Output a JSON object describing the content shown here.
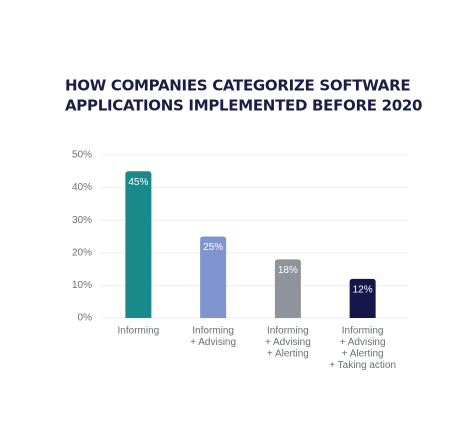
{
  "chart_data": {
    "type": "bar",
    "title": [
      "HOW COMPANIES CATEGORIZE SOFTWARE",
      "APPLICATIONS IMPLEMENTED BEFORE 2020"
    ],
    "categories": [
      [
        "Informing"
      ],
      [
        "Informing",
        "+ Advising"
      ],
      [
        "Informing",
        "+ Advising",
        "+ Alerting"
      ],
      [
        "Informing",
        "+ Advising",
        "+ Alerting",
        "+ Taking action"
      ]
    ],
    "values": [
      45,
      25,
      18,
      12
    ],
    "value_labels": [
      "45%",
      "25%",
      "18%",
      "12%"
    ],
    "colors": [
      "#178a89",
      "#7f95cf",
      "#8e939c",
      "#15174b"
    ],
    "ylim": [
      0,
      50
    ],
    "yticks": [
      {
        "value": 0,
        "label": "0%"
      },
      {
        "value": 10,
        "label": "10%"
      },
      {
        "value": 20,
        "label": "20%"
      },
      {
        "value": 30,
        "label": "30%"
      },
      {
        "value": 40,
        "label": "40%"
      },
      {
        "value": 50,
        "label": "50%"
      }
    ],
    "grid": true
  }
}
